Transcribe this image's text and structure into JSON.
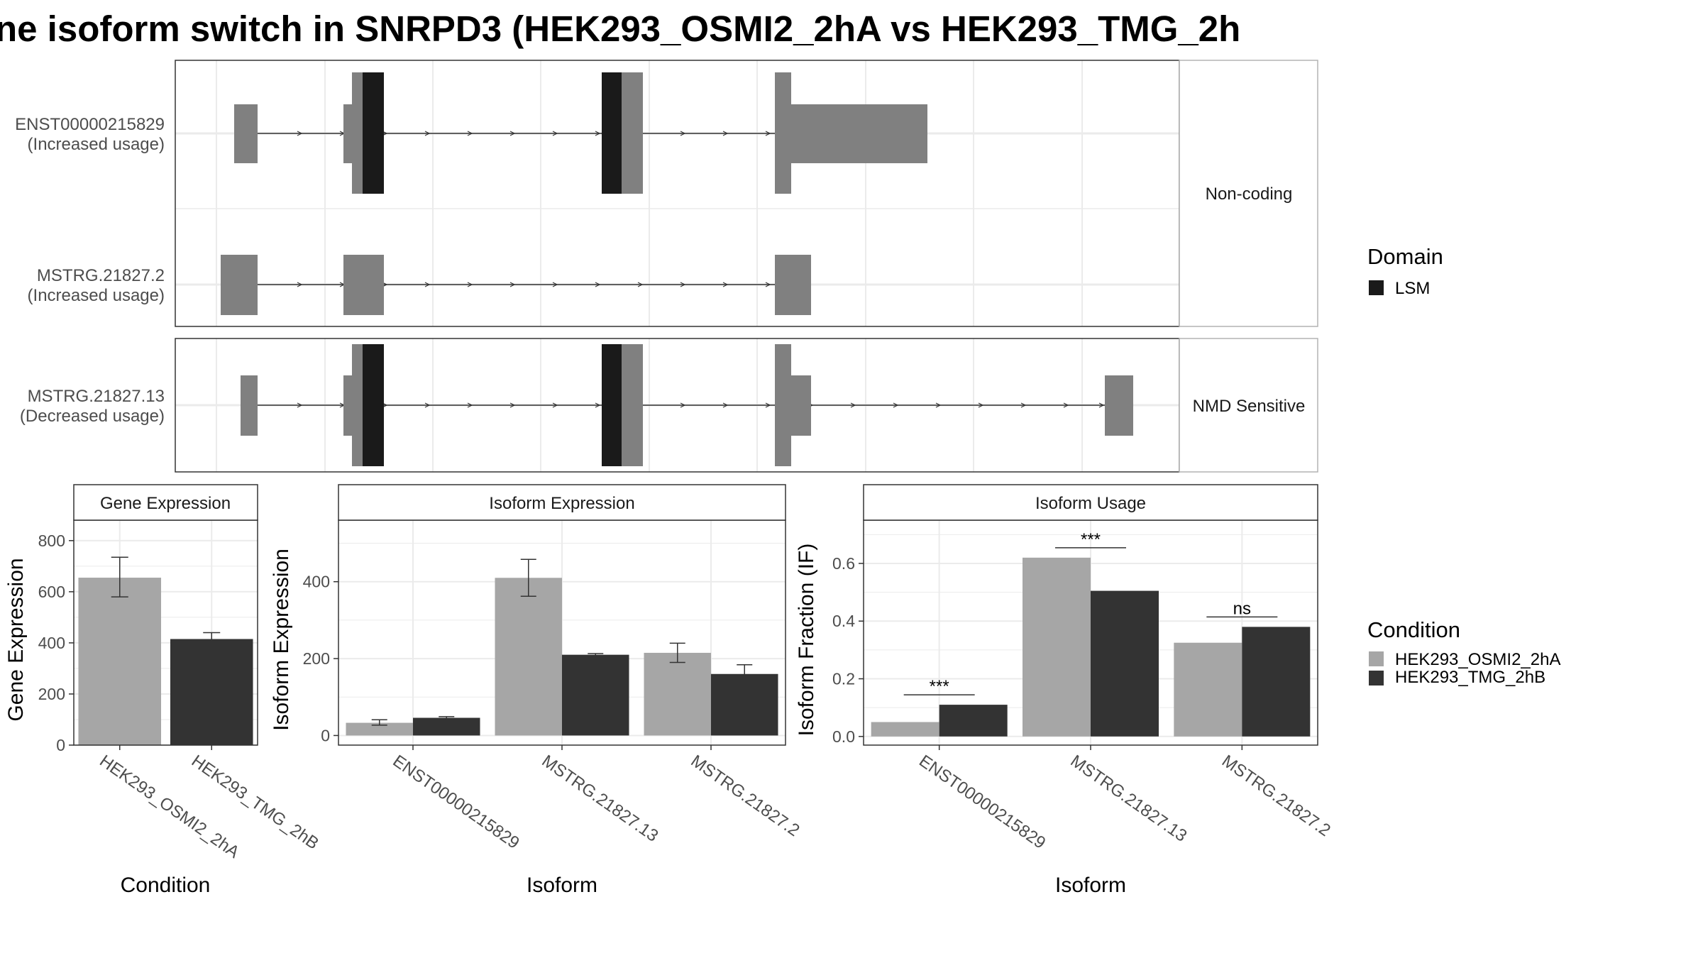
{
  "title": "ne isoform switch in SNRPD3 (HEK293_OSMI2_2hA vs HEK293_TMG_2h",
  "colors": {
    "exon": "#808080",
    "domain": "#1a1a1a",
    "cond_a": "#a6a6a6",
    "cond_b": "#333333",
    "grid": "#ebebeb",
    "panel_border": "#333333",
    "strip_border": "#b3b3b3"
  },
  "transcript_panels": [
    {
      "strip_label": "Non-coding",
      "transcripts": [
        {
          "id": "ENST00000215829",
          "status": "(Increased usage)"
        },
        {
          "id": "MSTRG.21827.2",
          "status": "(Increased usage)"
        }
      ]
    },
    {
      "strip_label": "NMD Sensitive",
      "transcripts": [
        {
          "id": "MSTRG.21827.13",
          "status": "(Decreased usage)"
        }
      ]
    }
  ],
  "domain_legend": {
    "title": "Domain",
    "items": [
      "LSM"
    ]
  },
  "condition_legend": {
    "title": "Condition",
    "items": [
      "HEK293_OSMI2_2hA",
      "HEK293_TMG_2hB"
    ]
  },
  "chart_data": [
    {
      "type": "bar",
      "title": "Gene Expression",
      "xlabel": "Condition",
      "ylabel": "Gene Expression",
      "categories": [
        "HEK293_OSMI2_2hA",
        "HEK293_TMG_2hB"
      ],
      "values": [
        655,
        415
      ],
      "errors": [
        [
          580,
          735
        ],
        [
          395,
          440
        ]
      ],
      "ylim": [
        0,
        880
      ],
      "yticks": [
        0,
        200,
        400,
        600,
        800
      ],
      "grid": true
    },
    {
      "type": "bar",
      "title": "Isoform Expression",
      "xlabel": "Isoform",
      "ylabel": "Isoform Expression",
      "categories": [
        "ENST00000215829",
        "MSTRG.21827.13",
        "MSTRG.21827.2"
      ],
      "series": [
        {
          "name": "HEK293_OSMI2_2hA",
          "values": [
            33,
            410,
            215
          ],
          "errors": [
            [
              27,
              41
            ],
            [
              362,
              458
            ],
            [
              190,
              240
            ]
          ]
        },
        {
          "name": "HEK293_TMG_2hB",
          "values": [
            46,
            210,
            160
          ],
          "errors": [
            [
              43,
              49
            ],
            [
              207,
              213
            ],
            [
              137,
              184
            ]
          ]
        }
      ],
      "ylim": [
        -25,
        560
      ],
      "yticks": [
        0,
        200,
        400
      ],
      "grid": true
    },
    {
      "type": "bar",
      "title": "Isoform Usage",
      "xlabel": "Isoform",
      "ylabel": "Isoform Fraction (IF)",
      "categories": [
        "ENST00000215829",
        "MSTRG.21827.13",
        "MSTRG.21827.2"
      ],
      "series": [
        {
          "name": "HEK293_OSMI2_2hA",
          "values": [
            0.05,
            0.62,
            0.325
          ]
        },
        {
          "name": "HEK293_TMG_2hB",
          "values": [
            0.11,
            0.505,
            0.38
          ]
        }
      ],
      "significance": [
        "***",
        "***",
        "ns"
      ],
      "ylim": [
        -0.03,
        0.75
      ],
      "yticks": [
        "0.0",
        "0.2",
        "0.4",
        "0.6"
      ],
      "grid": true
    }
  ]
}
